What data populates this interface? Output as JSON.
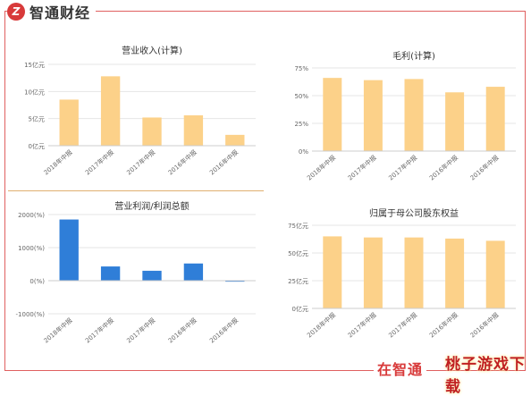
{
  "header": {
    "logo_mark": "Z",
    "brand": "智通财经"
  },
  "footer": {
    "text": "在智通",
    "watermark": "桃子游戏下载"
  },
  "chart_data": [
    {
      "id": "revenue",
      "type": "bar",
      "title": "营业收入(计算)",
      "categories": [
        "2018年中报",
        "2017年中报",
        "2017年中报",
        "2016年中报",
        "2016年中报"
      ],
      "values": [
        8.5,
        12.8,
        5.2,
        5.6,
        2.0
      ],
      "yticks": [
        0,
        5,
        10,
        15
      ],
      "ytick_labels": [
        "0亿元",
        "5亿元",
        "10亿元",
        "15亿元"
      ],
      "ylim": [
        0,
        15
      ],
      "color": "#fcd189",
      "grid": true
    },
    {
      "id": "gross_margin",
      "type": "bar",
      "title": "毛利(计算)",
      "categories": [
        "2018年中报",
        "2017年中报",
        "2017年中报",
        "2016年中报",
        "2016年中报"
      ],
      "values": [
        66,
        64,
        65,
        53,
        58
      ],
      "yticks": [
        0,
        25,
        50,
        75
      ],
      "ytick_labels": [
        "0%",
        "25%",
        "50%",
        "75%"
      ],
      "ylim": [
        0,
        75
      ],
      "color": "#fcd189",
      "grid": true
    },
    {
      "id": "operating_profit",
      "type": "bar",
      "title": "营业利润/利润总额",
      "categories": [
        "2018年中报",
        "2017年中报",
        "2017年中报",
        "2016年中报",
        "2016年中报"
      ],
      "values": [
        1850,
        430,
        300,
        520,
        -30
      ],
      "yticks": [
        -1000,
        0,
        1000,
        2000
      ],
      "ytick_labels": [
        "-1000(%)",
        "0(%)",
        "1000(%)",
        "2000(%)"
      ],
      "ylim": [
        -1000,
        2000
      ],
      "color": "#2f7ed8",
      "grid": true
    },
    {
      "id": "equity",
      "type": "bar",
      "title": "归属于母公司股东权益",
      "categories": [
        "2018年中报",
        "2017年中报",
        "2017年中报",
        "2016年中报",
        "2016年中报"
      ],
      "values": [
        65,
        64,
        64,
        63,
        61
      ],
      "yticks": [
        0,
        25,
        50,
        75
      ],
      "ytick_labels": [
        "0亿元",
        "25亿元",
        "50亿元",
        "75亿元"
      ],
      "ylim": [
        0,
        75
      ],
      "color": "#fcd189",
      "grid": true
    }
  ]
}
